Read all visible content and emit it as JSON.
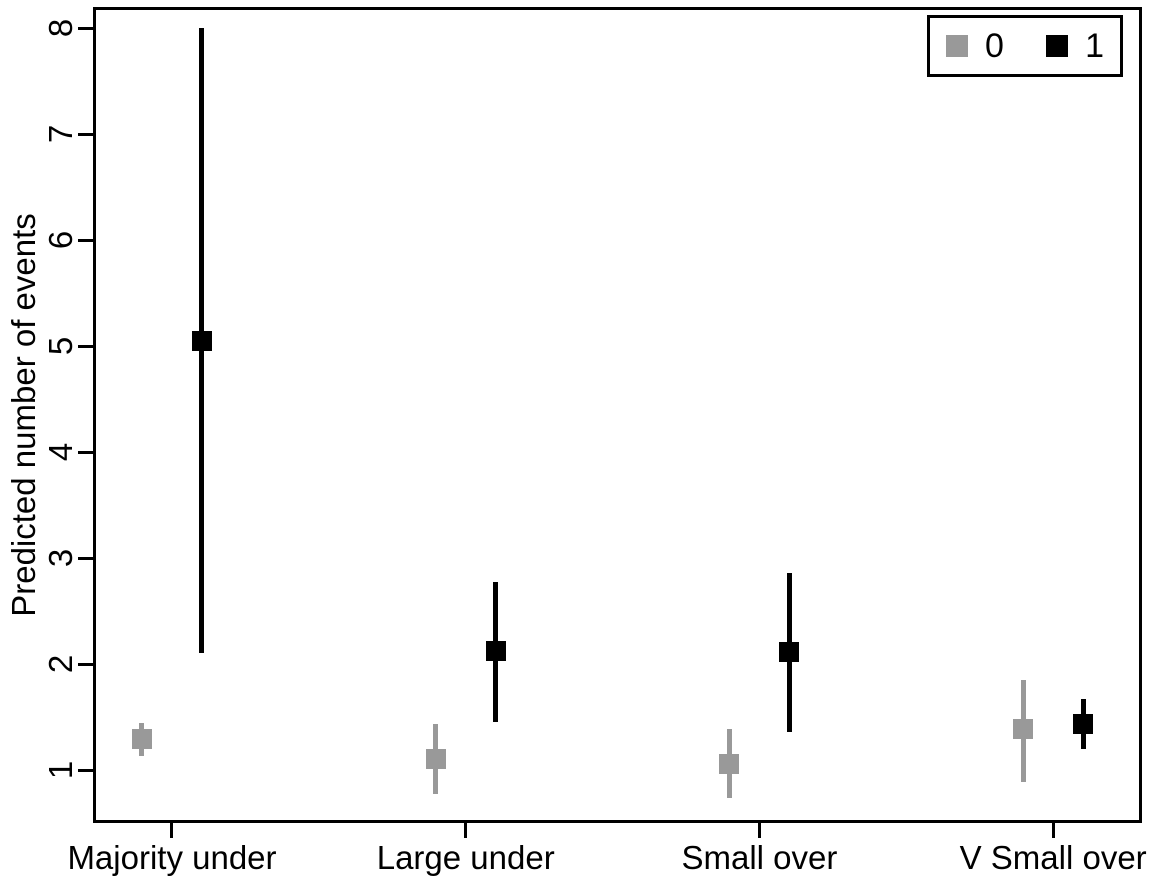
{
  "colors": {
    "series0": "#999999",
    "series1": "#000000",
    "axis": "#000000",
    "background": "#ffffff"
  },
  "legend": {
    "items": [
      {
        "label": "0",
        "color": "#999999"
      },
      {
        "label": "1",
        "color": "#000000"
      }
    ]
  },
  "chart_data": {
    "type": "scatter",
    "subtype": "point-estimates-with-confidence-intervals",
    "title": "",
    "xlabel": "",
    "ylabel": "Predicted number of events",
    "categories": [
      "Majority under",
      "Large under",
      "Small over",
      "V Small over"
    ],
    "yticks": [
      1,
      2,
      3,
      4,
      5,
      6,
      7,
      8
    ],
    "ylim": [
      0.5,
      8.2
    ],
    "grid": false,
    "legend_position": "top-right",
    "marker": "filled-square",
    "series": [
      {
        "name": "0",
        "color": "#999999",
        "points": [
          {
            "category": "Majority under",
            "estimate": 1.29,
            "ci_low": 1.13,
            "ci_high": 1.44
          },
          {
            "category": "Large under",
            "estimate": 1.1,
            "ci_low": 0.77,
            "ci_high": 1.43
          },
          {
            "category": "Small over",
            "estimate": 1.06,
            "ci_low": 0.74,
            "ci_high": 1.39
          },
          {
            "category": "V Small over",
            "estimate": 1.39,
            "ci_low": 0.89,
            "ci_high": 1.85
          }
        ]
      },
      {
        "name": "1",
        "color": "#000000",
        "points": [
          {
            "category": "Majority under",
            "estimate": 5.05,
            "ci_low": 2.1,
            "ci_high": 8.0
          },
          {
            "category": "Large under",
            "estimate": 2.12,
            "ci_low": 1.45,
            "ci_high": 2.77
          },
          {
            "category": "Small over",
            "estimate": 2.11,
            "ci_low": 1.36,
            "ci_high": 2.86
          },
          {
            "category": "V Small over",
            "estimate": 1.43,
            "ci_low": 1.2,
            "ci_high": 1.67
          }
        ]
      }
    ]
  }
}
